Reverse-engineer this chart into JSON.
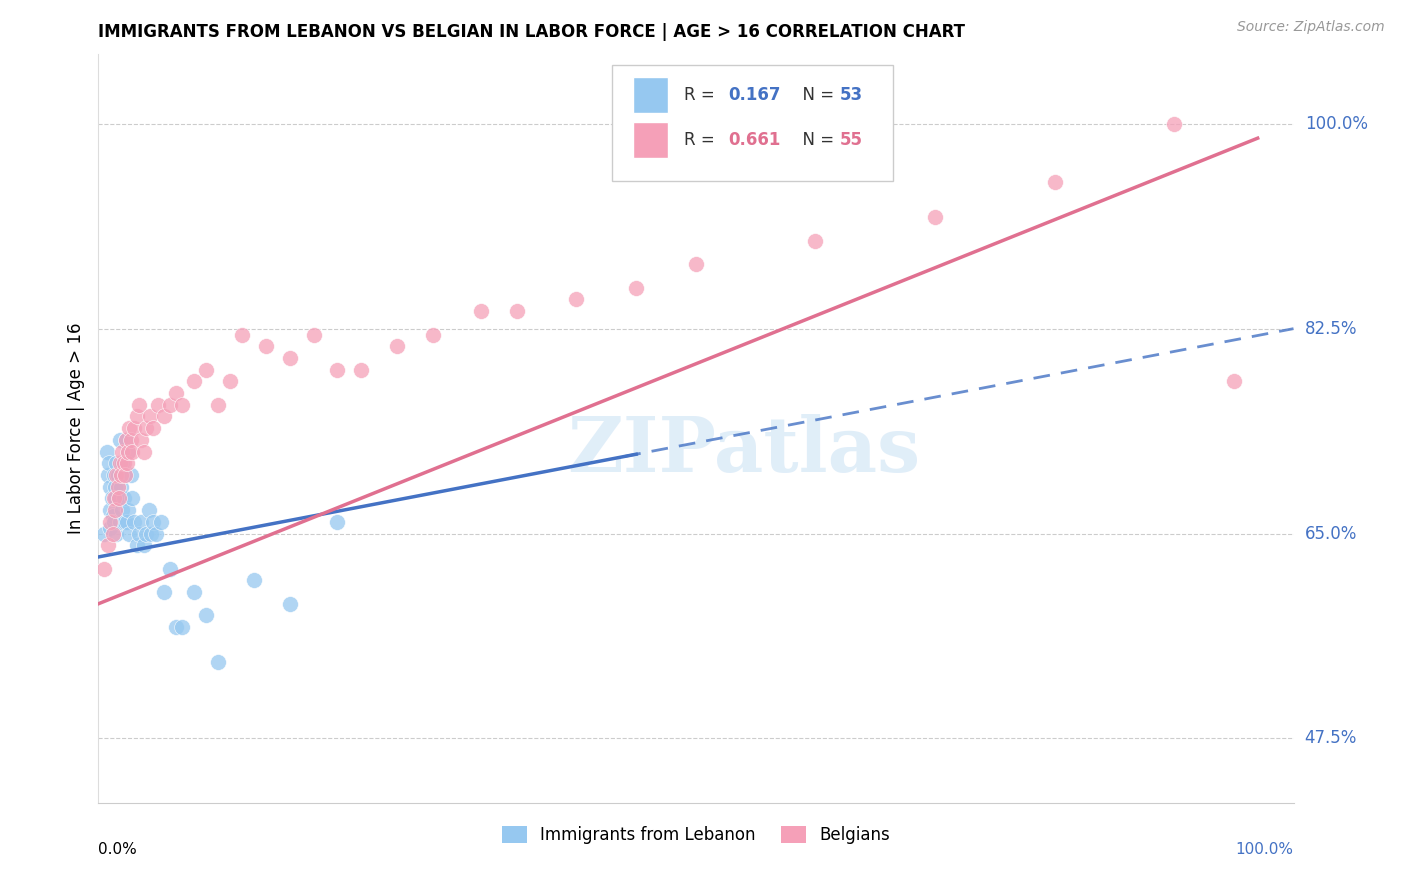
{
  "title": "IMMIGRANTS FROM LEBANON VS BELGIAN IN LABOR FORCE | AGE > 16 CORRELATION CHART",
  "source_text": "Source: ZipAtlas.com",
  "ylabel": "In Labor Force | Age > 16",
  "xlim": [
    0.0,
    1.0
  ],
  "ylim": [
    0.42,
    1.06
  ],
  "ytick_vals": [
    0.475,
    0.65,
    0.825,
    1.0
  ],
  "ytick_labels": [
    "47.5%",
    "65.0%",
    "82.5%",
    "100.0%"
  ],
  "legend_label1": "Immigrants from Lebanon",
  "legend_label2": "Belgians",
  "r1": 0.167,
  "n1": 53,
  "r2": 0.661,
  "n2": 55,
  "color_blue": "#96C8F0",
  "color_pink": "#F5A0B8",
  "line_blue": "#4472C4",
  "line_pink": "#E07090",
  "watermark": "ZIPatlas",
  "leb_x": [
    0.005,
    0.007,
    0.008,
    0.009,
    0.01,
    0.01,
    0.01,
    0.011,
    0.012,
    0.013,
    0.013,
    0.014,
    0.014,
    0.015,
    0.015,
    0.016,
    0.017,
    0.018,
    0.018,
    0.019,
    0.02,
    0.02,
    0.021,
    0.022,
    0.022,
    0.023,
    0.024,
    0.025,
    0.025,
    0.026,
    0.027,
    0.028,
    0.03,
    0.032,
    0.034,
    0.036,
    0.038,
    0.04,
    0.042,
    0.044,
    0.046,
    0.048,
    0.052,
    0.055,
    0.06,
    0.065,
    0.07,
    0.08,
    0.09,
    0.1,
    0.13,
    0.16,
    0.2
  ],
  "leb_y": [
    0.65,
    0.72,
    0.7,
    0.71,
    0.67,
    0.655,
    0.69,
    0.68,
    0.665,
    0.7,
    0.66,
    0.69,
    0.68,
    0.71,
    0.65,
    0.7,
    0.68,
    0.73,
    0.66,
    0.69,
    0.71,
    0.67,
    0.68,
    0.7,
    0.66,
    0.73,
    0.66,
    0.72,
    0.67,
    0.65,
    0.7,
    0.68,
    0.66,
    0.64,
    0.65,
    0.66,
    0.64,
    0.65,
    0.67,
    0.65,
    0.66,
    0.65,
    0.66,
    0.6,
    0.62,
    0.57,
    0.57,
    0.6,
    0.58,
    0.54,
    0.61,
    0.59,
    0.66
  ],
  "bel_x": [
    0.005,
    0.008,
    0.01,
    0.012,
    0.013,
    0.014,
    0.015,
    0.016,
    0.017,
    0.018,
    0.019,
    0.02,
    0.021,
    0.022,
    0.023,
    0.024,
    0.025,
    0.026,
    0.027,
    0.028,
    0.03,
    0.032,
    0.034,
    0.036,
    0.038,
    0.04,
    0.043,
    0.046,
    0.05,
    0.055,
    0.06,
    0.065,
    0.07,
    0.08,
    0.09,
    0.1,
    0.11,
    0.12,
    0.14,
    0.16,
    0.18,
    0.2,
    0.22,
    0.25,
    0.28,
    0.32,
    0.35,
    0.4,
    0.45,
    0.5,
    0.6,
    0.7,
    0.8,
    0.9,
    0.95
  ],
  "bel_y": [
    0.62,
    0.64,
    0.66,
    0.65,
    0.68,
    0.67,
    0.7,
    0.69,
    0.68,
    0.71,
    0.7,
    0.72,
    0.71,
    0.7,
    0.73,
    0.71,
    0.72,
    0.74,
    0.73,
    0.72,
    0.74,
    0.75,
    0.76,
    0.73,
    0.72,
    0.74,
    0.75,
    0.74,
    0.76,
    0.75,
    0.76,
    0.77,
    0.76,
    0.78,
    0.79,
    0.76,
    0.78,
    0.82,
    0.81,
    0.8,
    0.82,
    0.79,
    0.79,
    0.81,
    0.82,
    0.84,
    0.84,
    0.85,
    0.86,
    0.88,
    0.9,
    0.92,
    0.95,
    1.0,
    0.78
  ],
  "blue_solid_xrange": [
    0.0,
    0.45
  ],
  "blue_dash_xrange": [
    0.45,
    1.0
  ],
  "pink_solid_xrange": [
    0.0,
    1.0
  ],
  "blue_line_y0": 0.63,
  "blue_line_y1": 0.825,
  "pink_line_y0": 0.59,
  "pink_line_y1": 1.0
}
